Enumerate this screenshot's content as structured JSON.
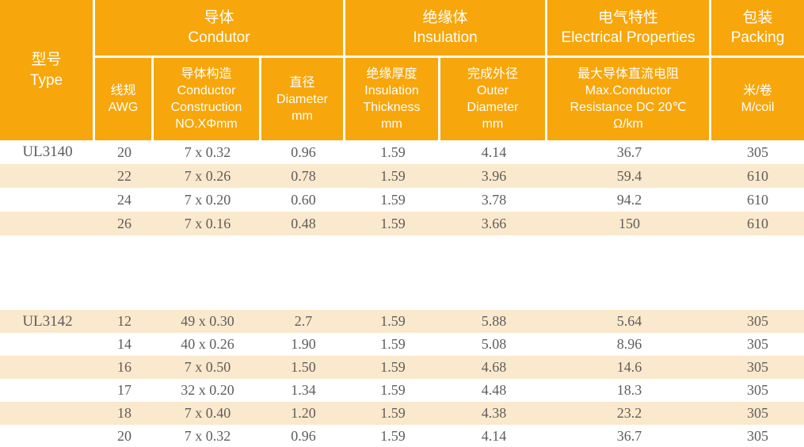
{
  "table": {
    "colors": {
      "header_bg": "#f7a60b",
      "stripe_bg": "#fbe9cd",
      "header_text": "#ffffff",
      "body_text": "#5d5d5d"
    },
    "header": {
      "type": "型号\nType",
      "groups": {
        "conductor": "导体\nCondutor",
        "insulation": "绝缘体\nInsulation",
        "electrical": "电气特性\nElectrical Properties",
        "packing": "包装\nPacking"
      },
      "subheaders": {
        "awg": "线规\nAWG",
        "construction": "导体构造\nConductor\nConstruction\nNO.XΦmm",
        "diameter": "直径\nDiameter\nmm",
        "insulation_thickness": "绝缘厚度\nInsulation\nThickness\nmm",
        "outer_diameter": "完成外径\nOuter\nDiameter\nmm",
        "resistance": "最大导体直流电阻\nMax.Conductor\nResistance DC 20℃\nΩ/km",
        "m_per_coil": "米/卷\nM/coil"
      }
    },
    "blocks": [
      {
        "type": "UL3140",
        "stripe_offset": 1,
        "rows": [
          [
            "20",
            "7 x 0.32",
            "0.96",
            "1.59",
            "4.14",
            "36.7",
            "305"
          ],
          [
            "22",
            "7 x 0.26",
            "0.78",
            "1.59",
            "3.96",
            "59.4",
            "610"
          ],
          [
            "24",
            "7 x 0.20",
            "0.60",
            "1.59",
            "3.78",
            "94.2",
            "610"
          ],
          [
            "26",
            "7 x 0.16",
            "0.48",
            "1.59",
            "3.66",
            "150",
            "610"
          ]
        ]
      },
      {
        "type": "UL3142",
        "stripe_offset": 0,
        "rows": [
          [
            "12",
            "49 x 0.30",
            "2.7",
            "1.59",
            "5.88",
            "5.64",
            "305"
          ],
          [
            "14",
            "40 x 0.26",
            "1.90",
            "1.59",
            "5.08",
            "8.96",
            "305"
          ],
          [
            "16",
            "7 x 0.50",
            "1.50",
            "1.59",
            "4.68",
            "14.6",
            "305"
          ],
          [
            "17",
            "32 x 0.20",
            "1.34",
            "1.59",
            "4.48",
            "18.3",
            "305"
          ],
          [
            "18",
            "7 x 0.40",
            "1.20",
            "1.59",
            "4.38",
            "23.2",
            "305"
          ],
          [
            "20",
            "7 x 0.32",
            "0.96",
            "1.59",
            "4.14",
            "36.7",
            "305"
          ]
        ]
      }
    ]
  }
}
